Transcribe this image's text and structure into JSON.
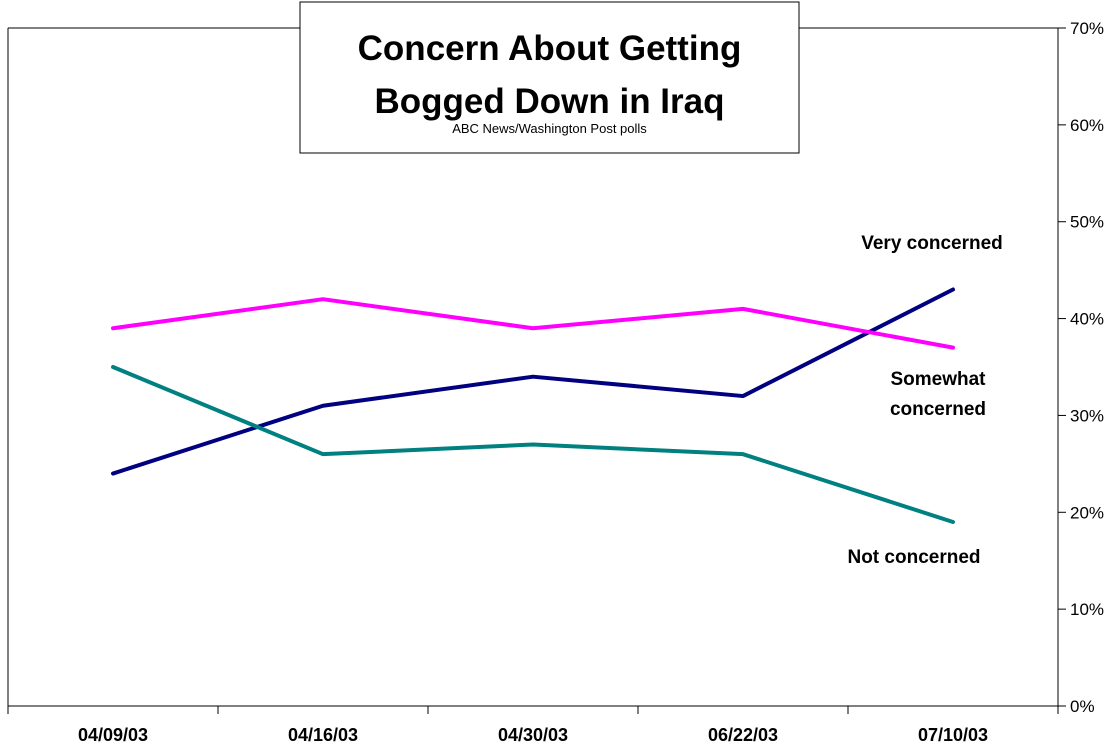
{
  "chart_data": {
    "type": "line",
    "title_lines": [
      "Concern About Getting",
      "Bogged Down in Iraq"
    ],
    "subtitle": "ABC News/Washington Post polls",
    "categories": [
      "04/09/03",
      "04/16/03",
      "04/30/03",
      "06/22/03",
      "07/10/03"
    ],
    "ylim": [
      0,
      70
    ],
    "y_ticks": [
      "0%",
      "10%",
      "20%",
      "30%",
      "40%",
      "50%",
      "60%",
      "70%"
    ],
    "y_axis_side": "right",
    "grid": false,
    "legend": "direct labels at right end of lines",
    "series": [
      {
        "name": "Very concerned",
        "label_lines": [
          "Very concerned"
        ],
        "color": "#000080",
        "values": [
          24,
          31,
          34,
          32,
          43
        ]
      },
      {
        "name": "Somewhat concerned",
        "label_lines": [
          "Somewhat",
          "concerned"
        ],
        "color": "#FF00FF",
        "values": [
          39,
          42,
          39,
          41,
          37
        ]
      },
      {
        "name": "Not concerned",
        "label_lines": [
          "Not concerned"
        ],
        "color": "#008080",
        "values": [
          35,
          26,
          27,
          26,
          19
        ]
      }
    ]
  }
}
